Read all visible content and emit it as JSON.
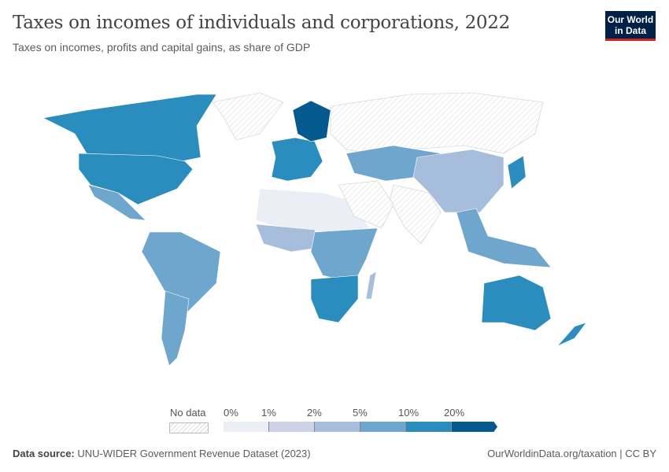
{
  "header": {
    "title": "Taxes on incomes of individuals and corporations, 2022",
    "subtitle": "Taxes on incomes, profits and capital gains, as share of GDP",
    "logo": "Our World in Data"
  },
  "legend": {
    "no_data_label": "No data",
    "no_data_pattern": "hatched",
    "ticks": [
      "0%",
      "1%",
      "2%",
      "5%",
      "10%",
      "20%"
    ],
    "bins": [
      {
        "range": "0-1%",
        "color": "#eceef6"
      },
      {
        "range": "1-2%",
        "color": "#cfd1e6"
      },
      {
        "range": "2-5%",
        "color": "#a6bddb"
      },
      {
        "range": "5-10%",
        "color": "#6ea6ce"
      },
      {
        "range": "10-20%",
        "color": "#2b8cbe"
      },
      {
        "range": ">20%",
        "color": "#045a8d"
      }
    ]
  },
  "map_regions": [
    {
      "region": "Canada",
      "bin": 4
    },
    {
      "region": "United States",
      "bin": 4
    },
    {
      "region": "Mexico",
      "bin": 3
    },
    {
      "region": "Greenland",
      "bin": null
    },
    {
      "region": "South America",
      "bin": 3
    },
    {
      "region": "Argentina",
      "bin": 3
    },
    {
      "region": "Western Europe",
      "bin": 4
    },
    {
      "region": "Scandinavia",
      "bin": 5
    },
    {
      "region": "Russia",
      "bin": null
    },
    {
      "region": "Central Asia",
      "bin": 3
    },
    {
      "region": "China",
      "bin": 2
    },
    {
      "region": "India",
      "bin": null
    },
    {
      "region": "Japan",
      "bin": 4
    },
    {
      "region": "North Africa",
      "bin": 0
    },
    {
      "region": "West Africa",
      "bin": 2
    },
    {
      "region": "East Africa",
      "bin": 3
    },
    {
      "region": "Southern Africa",
      "bin": 4
    },
    {
      "region": "Middle East",
      "bin": null
    },
    {
      "region": "Southeast Asia",
      "bin": 3
    },
    {
      "region": "Australia",
      "bin": 4
    },
    {
      "region": "New Zealand",
      "bin": 4
    },
    {
      "region": "Madagascar",
      "bin": 2
    }
  ],
  "footer": {
    "source_label": "Data source:",
    "source": "UNU-WIDER Government Revenue Dataset (2023)",
    "url": "OurWorldinData.org/taxation | CC BY"
  }
}
